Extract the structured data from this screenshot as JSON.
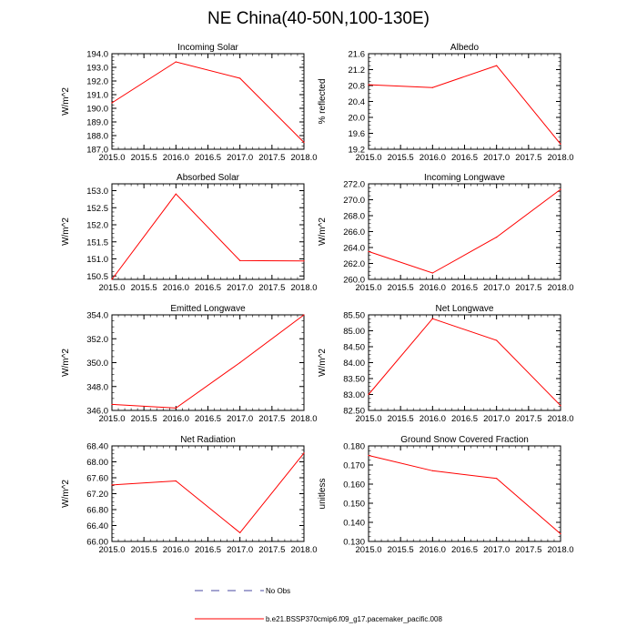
{
  "figure_title": "NE China(40-50N,100-130E)",
  "chart_data": [
    {
      "type": "line",
      "title": "Incoming Solar",
      "ylabel": "W/m^2",
      "x": [
        2015.0,
        2016.0,
        2017.0,
        2018.0
      ],
      "series": [
        {
          "name": "b.e21.BSSP370cmip6.f09_g17.pacemaker_pacific.008",
          "color": "#ff0000",
          "values": [
            190.4,
            193.4,
            192.2,
            187.5
          ]
        }
      ],
      "xlim": [
        2015.0,
        2018.0
      ],
      "ylim": [
        187.0,
        194.0
      ],
      "xticks": [
        2015.0,
        2015.5,
        2016.0,
        2016.5,
        2017.0,
        2017.5,
        2018.0
      ],
      "xtick_labels": [
        "2015.0",
        "2015.5",
        "2016.0",
        "2016.5",
        "2017.0",
        "2017.5",
        "2018.0"
      ],
      "yticks": [
        187.0,
        188.0,
        189.0,
        190.0,
        191.0,
        192.0,
        193.0,
        194.0
      ],
      "ytick_labels": [
        "187.0",
        "188.0",
        "189.0",
        "190.0",
        "191.0",
        "192.0",
        "193.0",
        "194.0"
      ]
    },
    {
      "type": "line",
      "title": "Albedo",
      "ylabel": "% reflected",
      "x": [
        2015.0,
        2016.0,
        2017.0,
        2018.0
      ],
      "series": [
        {
          "name": "b.e21.BSSP370cmip6.f09_g17.pacemaker_pacific.008",
          "color": "#ff0000",
          "values": [
            20.82,
            20.75,
            21.3,
            19.33
          ]
        }
      ],
      "xlim": [
        2015.0,
        2018.0
      ],
      "ylim": [
        19.2,
        21.6
      ],
      "xticks": [
        2015.0,
        2015.5,
        2016.0,
        2016.5,
        2017.0,
        2017.5,
        2018.0
      ],
      "xtick_labels": [
        "2015.0",
        "2015.5",
        "2016.0",
        "2016.5",
        "2017.0",
        "2017.5",
        "2018.0"
      ],
      "yticks": [
        19.2,
        19.6,
        20.0,
        20.4,
        20.8,
        21.2,
        21.6
      ],
      "ytick_labels": [
        "19.2",
        "19.6",
        "20.0",
        "20.4",
        "20.8",
        "21.2",
        "21.6"
      ]
    },
    {
      "type": "line",
      "title": "Absorbed Solar",
      "ylabel": "W/m^2",
      "x": [
        2015.0,
        2016.0,
        2017.0,
        2018.0
      ],
      "series": [
        {
          "name": "b.e21.BSSP370cmip6.f09_g17.pacemaker_pacific.008",
          "color": "#ff0000",
          "values": [
            150.4,
            152.9,
            150.95,
            150.94
          ]
        }
      ],
      "xlim": [
        2015.0,
        2018.0
      ],
      "ylim": [
        150.4,
        153.2
      ],
      "xticks": [
        2015.0,
        2015.5,
        2016.0,
        2016.5,
        2017.0,
        2017.5,
        2018.0
      ],
      "xtick_labels": [
        "2015.0",
        "2015.5",
        "2016.0",
        "2016.5",
        "2017.0",
        "2017.5",
        "2018.0"
      ],
      "yticks": [
        150.5,
        151.0,
        151.5,
        152.0,
        152.5,
        153.0
      ],
      "ytick_labels": [
        "150.5",
        "151.0",
        "151.5",
        "152.0",
        "152.5",
        "153.0"
      ]
    },
    {
      "type": "line",
      "title": "Incoming Longwave",
      "ylabel": "W/m^2",
      "x": [
        2015.0,
        2016.0,
        2017.0,
        2018.0
      ],
      "series": [
        {
          "name": "b.e21.BSSP370cmip6.f09_g17.pacemaker_pacific.008",
          "color": "#ff0000",
          "values": [
            263.5,
            260.8,
            265.3,
            271.3
          ]
        }
      ],
      "xlim": [
        2015.0,
        2018.0
      ],
      "ylim": [
        260.0,
        272.0
      ],
      "xticks": [
        2015.0,
        2015.5,
        2016.0,
        2016.5,
        2017.0,
        2017.5,
        2018.0
      ],
      "xtick_labels": [
        "2015.0",
        "2015.5",
        "2016.0",
        "2016.5",
        "2017.0",
        "2017.5",
        "2018.0"
      ],
      "yticks": [
        260.0,
        262.0,
        264.0,
        266.0,
        268.0,
        270.0,
        272.0
      ],
      "ytick_labels": [
        "260.0",
        "262.0",
        "264.0",
        "266.0",
        "268.0",
        "270.0",
        "272.0"
      ]
    },
    {
      "type": "line",
      "title": "Emitted Longwave",
      "ylabel": "W/m^2",
      "x": [
        2015.0,
        2016.0,
        2017.0,
        2018.0
      ],
      "series": [
        {
          "name": "b.e21.BSSP370cmip6.f09_g17.pacemaker_pacific.008",
          "color": "#ff0000",
          "values": [
            346.5,
            346.2,
            350.0,
            354.0
          ]
        }
      ],
      "xlim": [
        2015.0,
        2018.0
      ],
      "ylim": [
        346.0,
        354.0
      ],
      "xticks": [
        2015.0,
        2015.5,
        2016.0,
        2016.5,
        2017.0,
        2017.5,
        2018.0
      ],
      "xtick_labels": [
        "2015.0",
        "2015.5",
        "2016.0",
        "2016.5",
        "2017.0",
        "2017.5",
        "2018.0"
      ],
      "yticks": [
        346.0,
        348.0,
        350.0,
        352.0,
        354.0
      ],
      "ytick_labels": [
        "346.0",
        "348.0",
        "350.0",
        "352.0",
        "354.0"
      ]
    },
    {
      "type": "line",
      "title": "Net Longwave",
      "ylabel": "W/m^2",
      "x": [
        2015.0,
        2016.0,
        2017.0,
        2018.0
      ],
      "series": [
        {
          "name": "b.e21.BSSP370cmip6.f09_g17.pacemaker_pacific.008",
          "color": "#ff0000",
          "values": [
            83.0,
            85.38,
            84.7,
            82.65
          ]
        }
      ],
      "xlim": [
        2015.0,
        2018.0
      ],
      "ylim": [
        82.5,
        85.5
      ],
      "xticks": [
        2015.0,
        2015.5,
        2016.0,
        2016.5,
        2017.0,
        2017.5,
        2018.0
      ],
      "xtick_labels": [
        "2015.0",
        "2015.5",
        "2016.0",
        "2016.5",
        "2017.0",
        "2017.5",
        "2018.0"
      ],
      "yticks": [
        82.5,
        83.0,
        83.5,
        84.0,
        84.5,
        85.0,
        85.5
      ],
      "ytick_labels": [
        "82.50",
        "83.00",
        "83.50",
        "84.00",
        "84.50",
        "85.00",
        "85.50"
      ]
    },
    {
      "type": "line",
      "title": "Net Radiation",
      "ylabel": "W/m^2",
      "x": [
        2015.0,
        2016.0,
        2017.0,
        2018.0
      ],
      "series": [
        {
          "name": "b.e21.BSSP370cmip6.f09_g17.pacemaker_pacific.008",
          "color": "#ff0000",
          "values": [
            67.42,
            67.52,
            66.22,
            68.22
          ]
        }
      ],
      "xlim": [
        2015.0,
        2018.0
      ],
      "ylim": [
        66.0,
        68.4
      ],
      "xticks": [
        2015.0,
        2015.5,
        2016.0,
        2016.5,
        2017.0,
        2017.5,
        2018.0
      ],
      "xtick_labels": [
        "2015.0",
        "2015.5",
        "2016.0",
        "2016.5",
        "2017.0",
        "2017.5",
        "2018.0"
      ],
      "yticks": [
        66.0,
        66.4,
        66.8,
        67.2,
        67.6,
        68.0,
        68.4
      ],
      "ytick_labels": [
        "66.00",
        "66.40",
        "66.80",
        "67.20",
        "67.60",
        "68.00",
        "68.40"
      ]
    },
    {
      "type": "line",
      "title": "Ground Snow Covered Fraction",
      "ylabel": "unitless",
      "x": [
        2015.0,
        2016.0,
        2017.0,
        2018.0
      ],
      "series": [
        {
          "name": "b.e21.BSSP370cmip6.f09_g17.pacemaker_pacific.008",
          "color": "#ff0000",
          "values": [
            0.175,
            0.167,
            0.163,
            0.134
          ]
        }
      ],
      "xlim": [
        2015.0,
        2018.0
      ],
      "ylim": [
        0.13,
        0.18
      ],
      "xticks": [
        2015.0,
        2015.5,
        2016.0,
        2016.5,
        2017.0,
        2017.5,
        2018.0
      ],
      "xtick_labels": [
        "2015.0",
        "2015.5",
        "2016.0",
        "2016.5",
        "2017.0",
        "2017.5",
        "2018.0"
      ],
      "yticks": [
        0.13,
        0.14,
        0.15,
        0.16,
        0.17,
        0.18
      ],
      "ytick_labels": [
        "0.130",
        "0.140",
        "0.150",
        "0.160",
        "0.170",
        "0.180"
      ]
    }
  ],
  "legend": {
    "entries": [
      {
        "label": "No Obs",
        "color": "#4a4aa0",
        "style": "dashed"
      },
      {
        "label": "b.e21.BSSP370cmip6.f09_g17.pacemaker_pacific.008",
        "color": "#ff0000",
        "style": "solid"
      }
    ]
  }
}
